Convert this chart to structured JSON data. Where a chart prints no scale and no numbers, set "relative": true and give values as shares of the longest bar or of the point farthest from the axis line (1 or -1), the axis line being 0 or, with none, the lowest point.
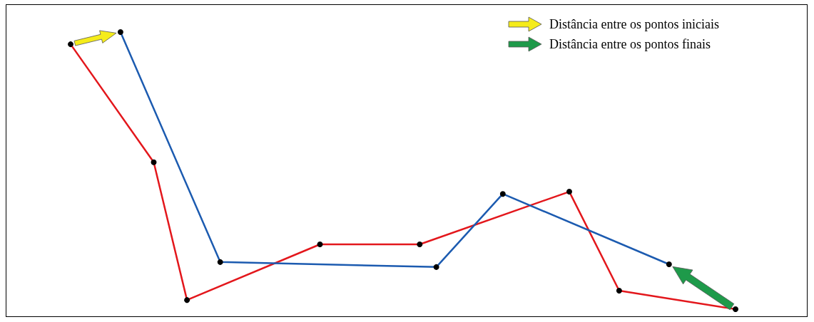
{
  "chart_data": {
    "type": "line",
    "relative": true,
    "marker": "circle",
    "line_style": "solid",
    "annotations": [
      "Distância entre os pontos iniciais",
      "Distância entre os pontos finais"
    ],
    "categories": [
      null,
      null,
      null,
      null,
      null,
      null,
      null,
      null,
      null,
      null,
      null,
      null,
      null,
      null,
      null,
      null,
      null,
      null,
      null,
      null,
      null,
      null,
      null,
      null,
      null,
      null,
      null,
      null,
      null,
      null,
      null,
      null,
      null,
      null,
      null,
      null,
      null,
      null,
      null,
      null,
      null
    ],
    "series": [
      {
        "color": "#e3171c",
        "values": [
          0.956,
          null,
          null,
          null,
          null,
          0.53,
          null,
          0.033,
          null,
          null,
          null,
          null,
          null,
          null,
          null,
          0.234,
          null,
          null,
          null,
          null,
          null,
          0.234,
          null,
          null,
          null,
          null,
          null,
          null,
          null,
          null,
          0.424,
          null,
          null,
          0.067,
          null,
          null,
          null,
          null,
          null,
          null,
          0
        ]
      },
      {
        "color": "#1c5bb0",
        "values": [
          null,
          null,
          null,
          1,
          null,
          null,
          null,
          null,
          null,
          0.17,
          null,
          null,
          null,
          null,
          null,
          null,
          null,
          null,
          null,
          null,
          null,
          null,
          0.152,
          null,
          null,
          null,
          0.416,
          null,
          null,
          null,
          null,
          null,
          null,
          null,
          null,
          null,
          0.162,
          null,
          null,
          null,
          null
        ]
      }
    ]
  }
}
